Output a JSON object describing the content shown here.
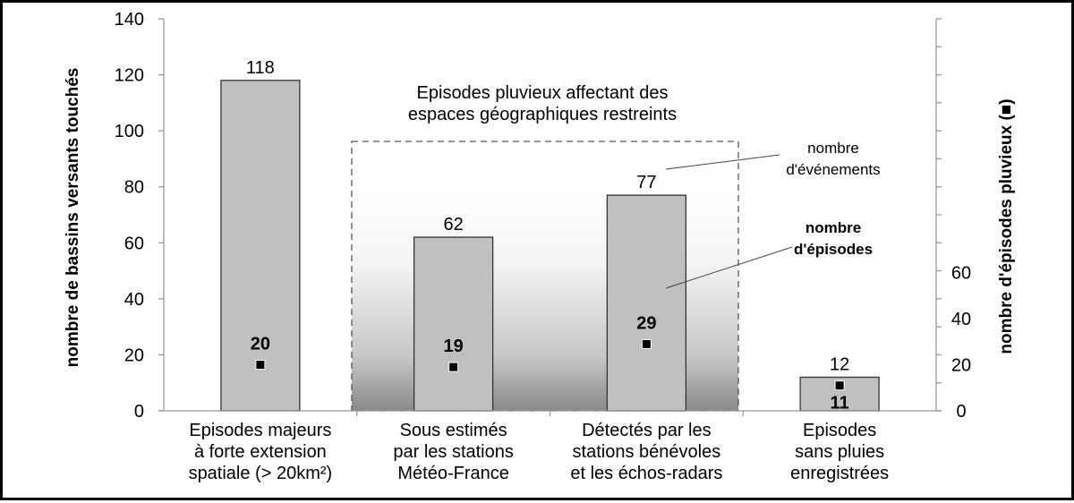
{
  "chart_data": {
    "type": "bar",
    "categories": [
      [
        "Episodes majeurs",
        "à forte extension",
        "spatiale (> 20km²)"
      ],
      [
        "Sous estimés",
        "par les stations",
        "Météo-France"
      ],
      [
        "Détectés par les",
        "stations bénévoles",
        "et les échos-radars"
      ],
      [
        "Episodes",
        "sans pluies",
        "enregistrées"
      ]
    ],
    "series": [
      {
        "name": "nombre d'événements",
        "values": [
          118,
          62,
          77,
          12
        ],
        "value_labels": [
          "118",
          "62",
          "77",
          "12"
        ],
        "axis": "left",
        "kind": "bar",
        "color": "#c0c0c0"
      },
      {
        "name": "nombre d'épisodes",
        "values": [
          20,
          19,
          29,
          11
        ],
        "value_labels": [
          "20",
          "19",
          "29",
          "11"
        ],
        "axis": "right",
        "kind": "marker",
        "color": "#000000"
      }
    ],
    "ylabel": "nombre de bassins versants touchés",
    "y2label": "nombre d'épisodes pluvieux (■)",
    "ylim": [
      0,
      140
    ],
    "yticks": [
      0,
      20,
      40,
      60,
      80,
      100,
      120,
      140
    ],
    "y2lim": [
      0,
      140
    ],
    "y2ticks": [
      0,
      20,
      40,
      60
    ],
    "grid": false,
    "annotations": {
      "box_title": [
        "Episodes pluvieux affectant des",
        "espaces géographiques restreints"
      ],
      "events_label": [
        "nombre",
        "d'événements"
      ],
      "episodes_label": [
        "nombre",
        "d'épisodes"
      ]
    }
  }
}
